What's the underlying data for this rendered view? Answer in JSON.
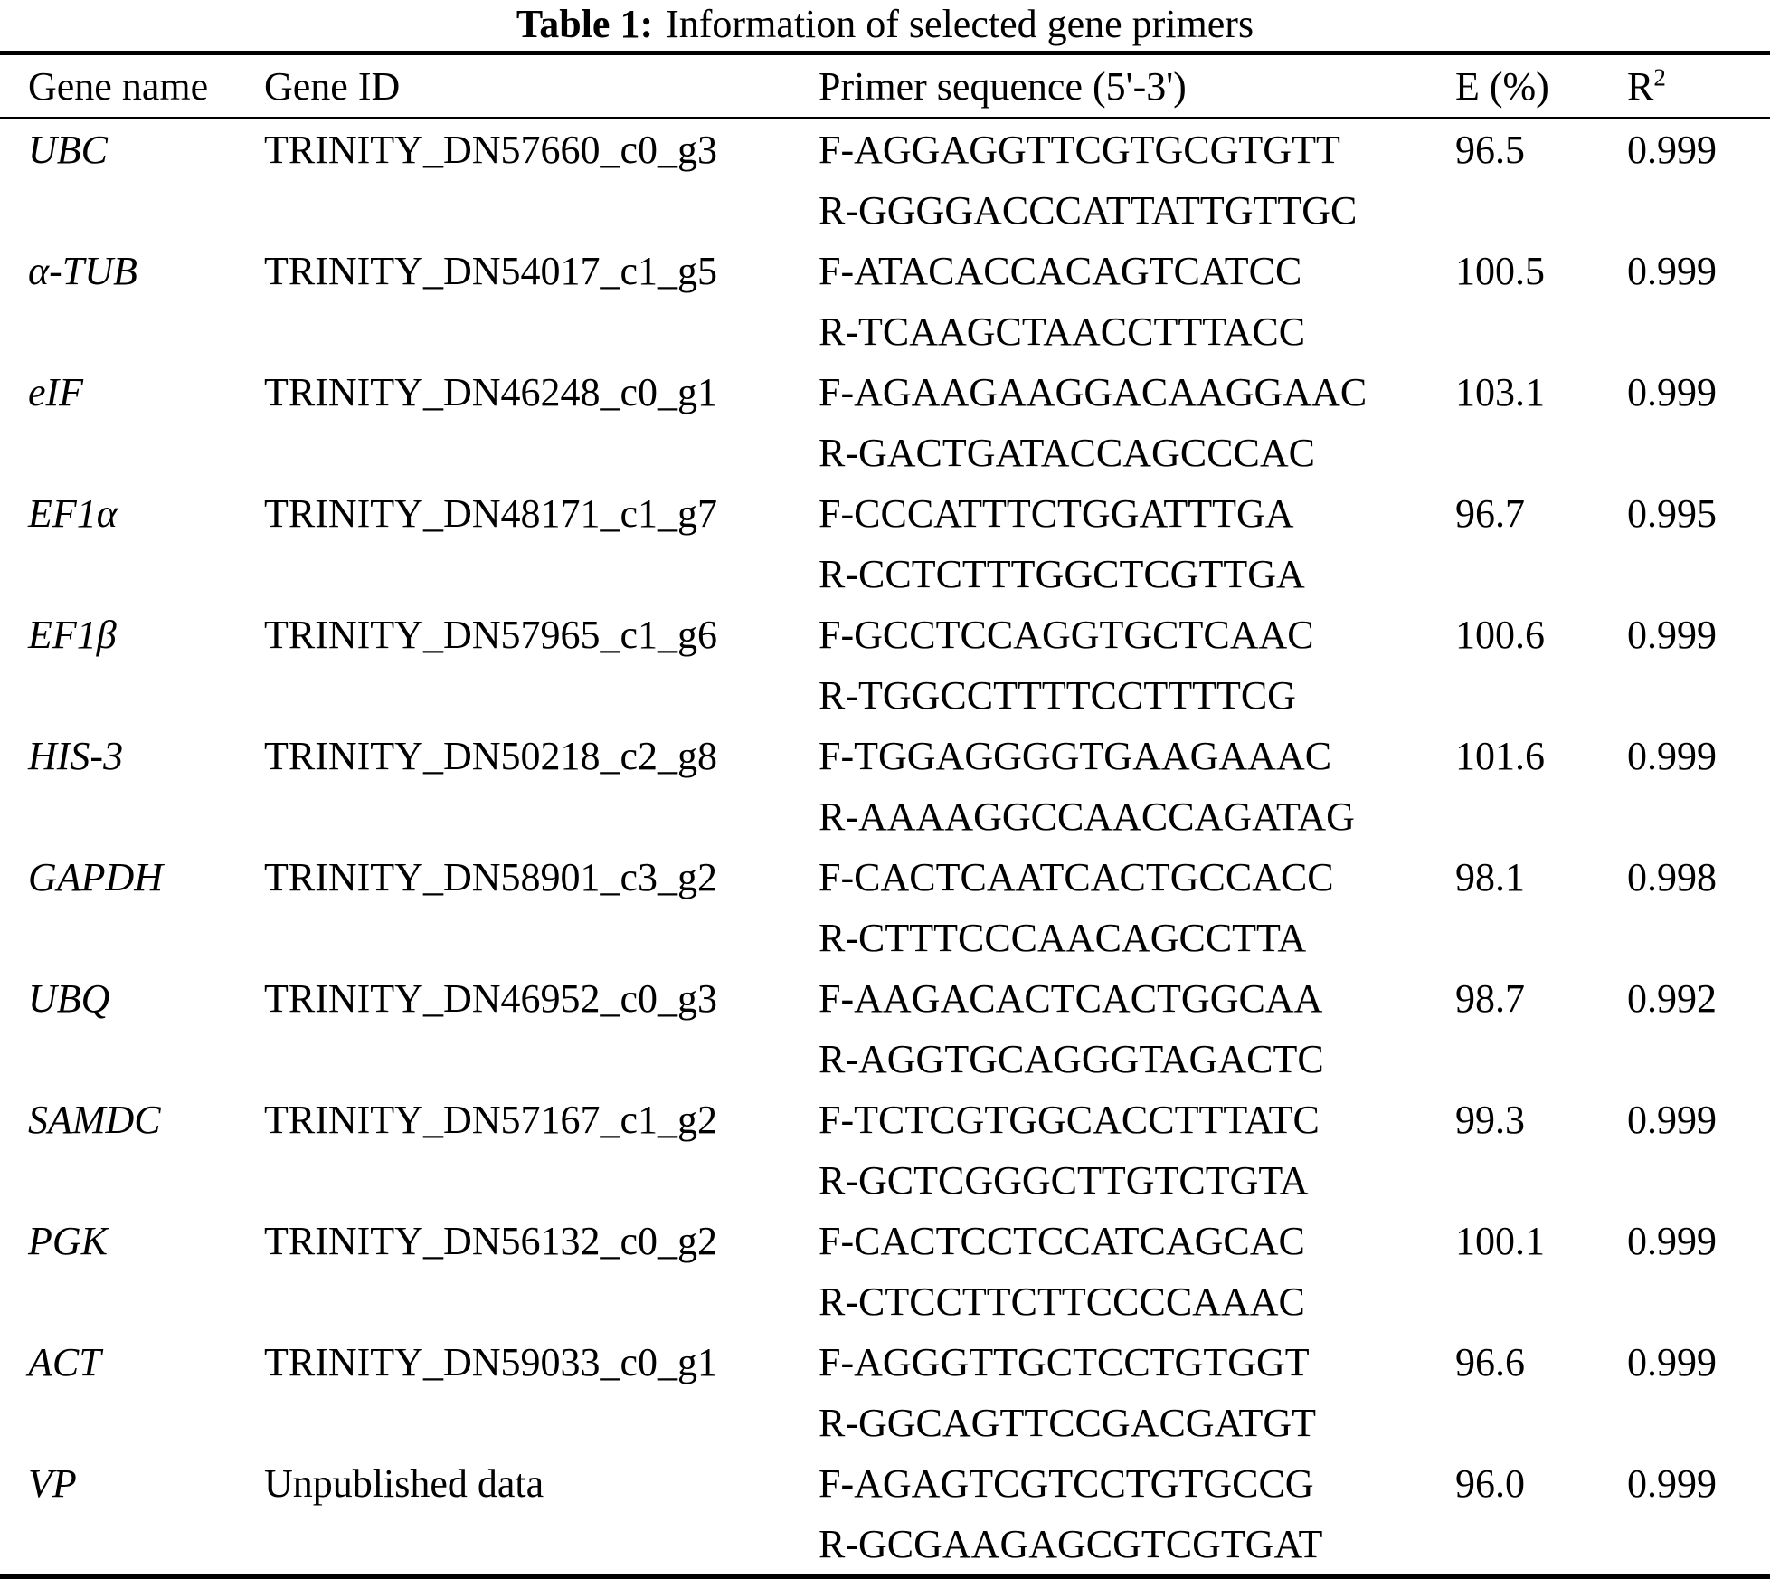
{
  "title": {
    "label": "Table 1:",
    "text": "Information of selected gene primers"
  },
  "colors": {
    "background": "#ffffff",
    "text": "#000000",
    "rule": "#000000"
  },
  "table": {
    "headers": {
      "gene_name": "Gene name",
      "gene_id": "Gene ID",
      "primer_sequence": "Primer sequence (5'-3')",
      "efficiency": "E (%)",
      "r_base": "R",
      "r_sup": "2"
    },
    "rows": [
      {
        "gene": "UBC",
        "gene_id": "TRINITY_DN57660_c0_g3",
        "primer_f": "F-AGGAGGTTCGTGCGTGTT",
        "primer_r": "R-GGGGACCCATTATTGTTGC",
        "e_percent": "96.5",
        "r2": "0.999"
      },
      {
        "gene": "α-TUB",
        "gene_id": "TRINITY_DN54017_c1_g5",
        "primer_f": "F-ATACACCACAGTCATCC",
        "primer_r": "R-TCAAGCTAACCTTTACC",
        "e_percent": "100.5",
        "r2": "0.999"
      },
      {
        "gene": "eIF",
        "gene_id": "TRINITY_DN46248_c0_g1",
        "primer_f": "F-AGAAGAAGGACAAGGAAC",
        "primer_r": "R-GACTGATACCAGCCCAC",
        "e_percent": "103.1",
        "r2": "0.999"
      },
      {
        "gene": "EF1α",
        "gene_id": "TRINITY_DN48171_c1_g7",
        "primer_f": "F-CCCATTTCTGGATTTGA",
        "primer_r": "R-CCTCTTTGGCTCGTTGA",
        "e_percent": "96.7",
        "r2": "0.995"
      },
      {
        "gene": "EF1β",
        "gene_id": "TRINITY_DN57965_c1_g6",
        "primer_f": "F-GCCTCCAGGTGCTCAAC",
        "primer_r": "R-TGGCCTTTTCCTTTTCG",
        "e_percent": "100.6",
        "r2": "0.999"
      },
      {
        "gene": "HIS-3",
        "gene_id": "TRINITY_DN50218_c2_g8",
        "primer_f": "F-TGGAGGGGTGAAGAAAC",
        "primer_r": "R-AAAAGGCCAACCAGATAG",
        "e_percent": "101.6",
        "r2": "0.999"
      },
      {
        "gene": "GAPDH",
        "gene_id": "TRINITY_DN58901_c3_g2",
        "primer_f": "F-CACTCAATCACTGCCACC",
        "primer_r": "R-CTTTCCCAACAGCCTTA",
        "e_percent": "98.1",
        "r2": "0.998"
      },
      {
        "gene": "UBQ",
        "gene_id": "TRINITY_DN46952_c0_g3",
        "primer_f": "F-AAGACACTCACTGGCAA",
        "primer_r": "R-AGGTGCAGGGTAGACTC",
        "e_percent": "98.7",
        "r2": "0.992"
      },
      {
        "gene": "SAMDC",
        "gene_id": "TRINITY_DN57167_c1_g2",
        "primer_f": "F-TCTCGTGGCACCTTTATC",
        "primer_r": "R-GCTCGGGCTTGTCTGTA",
        "e_percent": "99.3",
        "r2": "0.999"
      },
      {
        "gene": "PGK",
        "gene_id": "TRINITY_DN56132_c0_g2",
        "primer_f": "F-CACTCCTCCATCAGCAC",
        "primer_r": "R-CTCCTTCTTCCCCAAAC",
        "e_percent": "100.1",
        "r2": "0.999"
      },
      {
        "gene": "ACT",
        "gene_id": "TRINITY_DN59033_c0_g1",
        "primer_f": "F-AGGGTTGCTCCTGTGGT",
        "primer_r": "R-GGCAGTTCCGACGATGT",
        "e_percent": "96.6",
        "r2": "0.999"
      },
      {
        "gene": "VP",
        "gene_id": "Unpublished data",
        "primer_f": "F-AGAGTCGTCCTGTGCCG",
        "primer_r": "R-GCGAAGAGCGTCGTGAT",
        "e_percent": "96.0",
        "r2": "0.999"
      }
    ]
  }
}
